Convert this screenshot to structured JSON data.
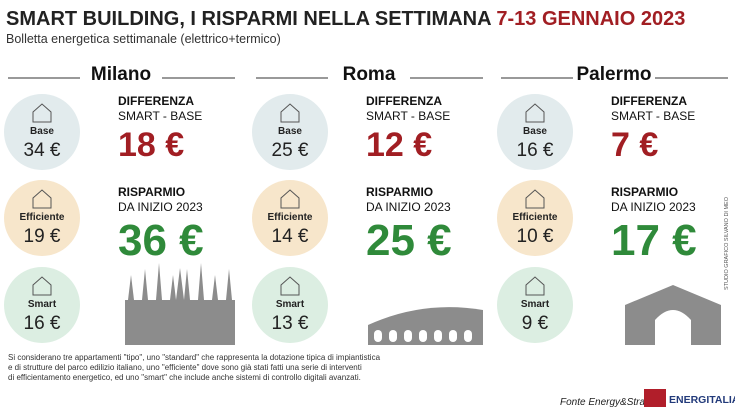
{
  "header": {
    "title": "SMART BUILDING, I RISPARMI NELLA SETTIMANA",
    "date": "7-13 GENNAIO 2023",
    "subtitle": "Bolletta energetica settimanale (elettrico+termico)"
  },
  "cities": [
    {
      "name": "Milano",
      "base_label": "Base",
      "base": "34 €",
      "efficiente_label": "Efficiente",
      "efficiente": "19 €",
      "smart_label": "Smart",
      "smart": "16 €",
      "diff_title": "DIFFERENZA",
      "diff_sub": "SMART - BASE",
      "diff": "18 €",
      "risp_title": "RISPARMIO",
      "risp_sub": "DA INIZIO 2023",
      "risp": "36 €"
    },
    {
      "name": "Roma",
      "base_label": "Base",
      "base": "25 €",
      "efficiente_label": "Efficiente",
      "efficiente": "14 €",
      "smart_label": "Smart",
      "smart": "13 €",
      "diff_title": "DIFFERENZA",
      "diff_sub": "SMART - BASE",
      "diff": "12 €",
      "risp_title": "RISPARMIO",
      "risp_sub": "DA INIZIO 2023",
      "risp": "25 €"
    },
    {
      "name": "Palermo",
      "base_label": "Base",
      "base": "16 €",
      "efficiente_label": "Efficiente",
      "efficiente": "10 €",
      "smart_label": "Smart",
      "smart": "9 €",
      "diff_title": "DIFFERENZA",
      "diff_sub": "SMART - BASE",
      "diff": "7 €",
      "risp_title": "RISPARMIO",
      "risp_sub": "DA INIZIO 2023",
      "risp": "17 €"
    }
  ],
  "credit": "STUDIO GRAFICO SILVANO DI MEO",
  "footer": {
    "note": [
      "Si considerano tre appartamenti \"tipo\", uno \"standard\" che rappresenta la dotazione tipica di impiantistica",
      "e di strutture del parco edilizio italiano, uno \"efficiente\" dove sono già stati fatti una serie di interventi",
      "di efficientamento energetico, ed uno \"smart\" che include anche sistemi di controllo digitali avanzati."
    ],
    "source": "Fonte Energy&Strategy",
    "logo": "ENERGITALIA"
  }
}
